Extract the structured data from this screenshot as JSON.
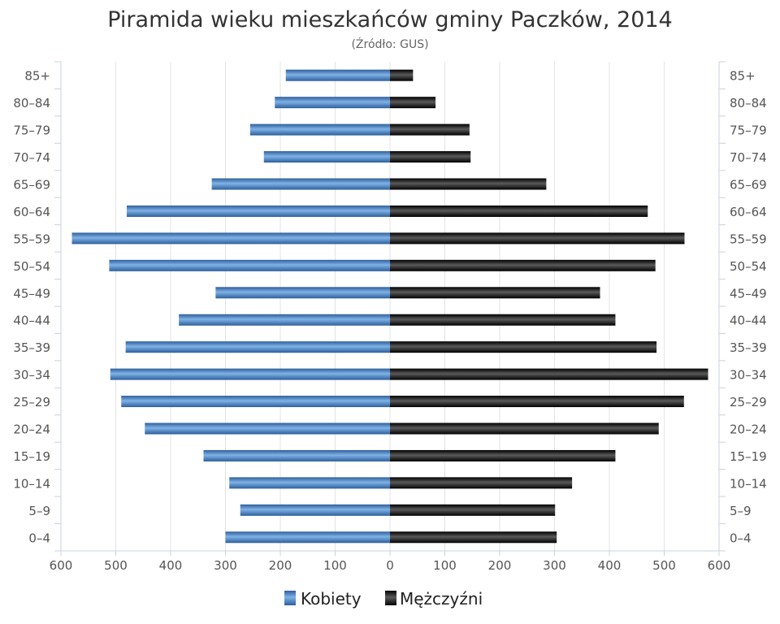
{
  "chart_data": {
    "type": "bar",
    "orientation": "horizontal-population-pyramid",
    "title": "Piramida wieku mieszkańców gminy Paczków, 2014",
    "subtitle": "(Źródło: GUS)",
    "categories": [
      "85+",
      "80–84",
      "75–79",
      "70–74",
      "65–69",
      "60–64",
      "55–59",
      "50–54",
      "45–49",
      "40–44",
      "35–39",
      "30–34",
      "25–29",
      "20–24",
      "15–19",
      "10–14",
      "5–9",
      "0–4"
    ],
    "series": [
      {
        "name": "Kobiety",
        "side": "left",
        "color": "#3f7dc0",
        "values": [
          190,
          210,
          255,
          230,
          325,
          480,
          580,
          512,
          318,
          385,
          482,
          510,
          490,
          447,
          340,
          293,
          273,
          300
        ]
      },
      {
        "name": "Mężczyźni",
        "side": "right",
        "color": "#1a1a1a",
        "values": [
          42,
          83,
          145,
          147,
          285,
          470,
          537,
          484,
          383,
          411,
          486,
          580,
          536,
          490,
          411,
          332,
          301,
          304
        ]
      }
    ],
    "x_ticks": [
      "600",
      "500",
      "400",
      "300",
      "200",
      "100",
      "0",
      "100",
      "200",
      "300",
      "400",
      "500",
      "600"
    ],
    "xlim": [
      -600,
      600
    ],
    "grid": true,
    "legend_position": "bottom"
  }
}
